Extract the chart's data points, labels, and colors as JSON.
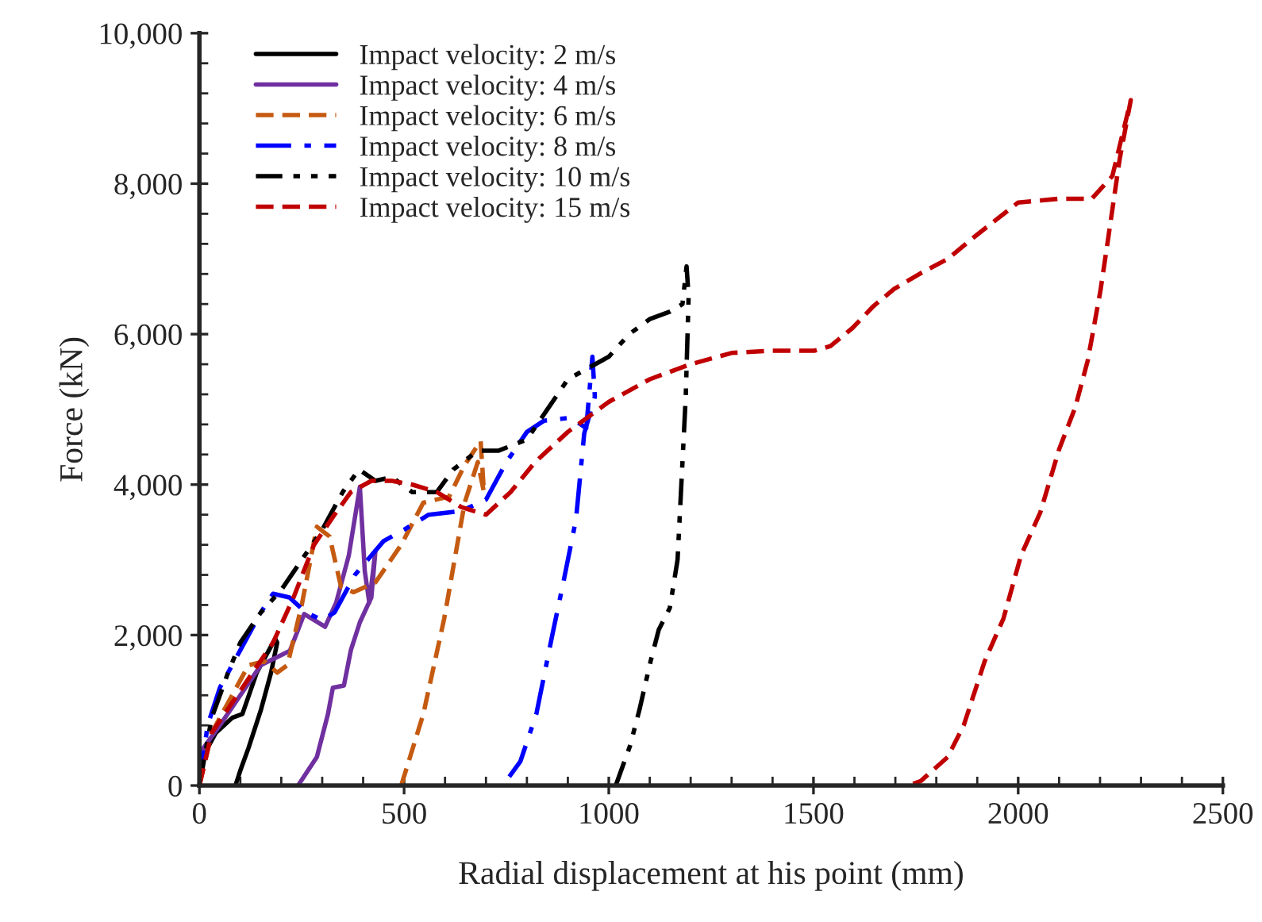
{
  "chart_data": {
    "type": "line",
    "xlabel": "Radial displacement at his point (mm)",
    "ylabel": "Force (kN)",
    "xlim": [
      0,
      2500
    ],
    "xticks": [
      0,
      500,
      1000,
      1500,
      2000,
      2500
    ],
    "ylim": [
      0,
      10000
    ],
    "yticks": [
      {
        "value": 0,
        "label": "0"
      },
      {
        "value": 2000,
        "label": "2,000"
      },
      {
        "value": 4000,
        "label": "4,000"
      },
      {
        "value": 6000,
        "label": "6,000"
      },
      {
        "value": 8000,
        "label": "8,000"
      },
      {
        "value": 10000,
        "label": "10,000"
      }
    ],
    "grid": false,
    "legend": "top left",
    "marker": "none",
    "series": [
      {
        "name": "Impact velocity: 2 m/s",
        "color": "#000000",
        "line_style": "solid",
        "x": [
          0,
          10,
          40,
          80,
          105,
          140,
          170,
          185,
          190,
          175,
          150,
          120,
          100,
          88
        ],
        "values": [
          0,
          400,
          700,
          900,
          950,
          1500,
          1800,
          1950,
          1900,
          1500,
          1000,
          500,
          200,
          0
        ]
      },
      {
        "name": "Impact velocity: 4 m/s",
        "color": "#7030a0",
        "line_style": "solid",
        "x": [
          0,
          10,
          50,
          100,
          150,
          221,
          256,
          307,
          334,
          365,
          392,
          404,
          415,
          430,
          420,
          392,
          370,
          353,
          326,
          314,
          287,
          241
        ],
        "values": [
          0,
          500,
          800,
          1200,
          1600,
          1790,
          2280,
          2110,
          2430,
          3060,
          3970,
          2850,
          2430,
          3120,
          2500,
          2170,
          1800,
          1330,
          1300,
          950,
          380,
          0
        ]
      },
      {
        "name": "Impact velocity: 6 m/s",
        "color": "#c55a11",
        "line_style": "dashed",
        "x": [
          0,
          30,
          80,
          120,
          160,
          190,
          215,
          250,
          287,
          318,
          346,
          377,
          430,
          493,
          547,
          610,
          648,
          687,
          695,
          680,
          648,
          598,
          547,
          493
        ],
        "values": [
          0,
          700,
          1200,
          1600,
          1650,
          1500,
          1600,
          2400,
          3440,
          3310,
          2640,
          2570,
          2700,
          3200,
          3760,
          3840,
          4260,
          4580,
          3900,
          4300,
          3760,
          2220,
          950,
          0
        ]
      },
      {
        "name": "Impact velocity: 8 m/s",
        "color": "#0000ff",
        "line_style": "dashdot",
        "x": [
          0,
          20,
          50,
          100,
          150,
          180,
          220,
          260,
          300,
          330,
          380,
          450,
          500,
          560,
          640,
          700,
          750,
          800,
          842,
          908,
          945,
          960,
          966,
          940,
          920,
          889,
          862,
          823,
          784,
          741
        ],
        "values": [
          0,
          800,
          1300,
          1800,
          2300,
          2550,
          2500,
          2300,
          2200,
          2300,
          2800,
          3250,
          3400,
          3600,
          3650,
          3800,
          4300,
          4700,
          4850,
          4890,
          4750,
          5700,
          5170,
          4680,
          3540,
          2700,
          2000,
          950,
          320,
          0
        ]
      },
      {
        "name": "Impact velocity: 10 m/s",
        "color": "#000000",
        "line_style": "dashdotdot",
        "x": [
          0,
          30,
          70,
          100,
          150,
          200,
          250,
          300,
          350,
          390,
          430,
          470,
          520,
          580,
          620,
          680,
          730,
          800,
          850,
          900,
          1000,
          1050,
          1100,
          1150,
          1180,
          1190,
          1195,
          1188,
          1168,
          1149,
          1122,
          1102,
          1075,
          1052,
          1017
        ],
        "values": [
          0,
          900,
          1500,
          1900,
          2300,
          2600,
          3000,
          3400,
          3900,
          4200,
          4050,
          4100,
          3900,
          3900,
          4200,
          4450,
          4450,
          4600,
          5000,
          5400,
          5700,
          6000,
          6200,
          6300,
          6400,
          6900,
          6500,
          5170,
          3000,
          2360,
          2070,
          1650,
          1010,
          530,
          0
        ]
      },
      {
        "name": "Impact velocity: 15 m/s",
        "color": "#c00000",
        "line_style": "dashed",
        "x": [
          0,
          30,
          80,
          130,
          180,
          230,
          280,
          330,
          370,
          420,
          470,
          520,
          580,
          640,
          700,
          760,
          820,
          900,
          1000,
          1100,
          1200,
          1300,
          1394,
          1502,
          1541,
          1595,
          1646,
          1697,
          1762,
          1828,
          1890,
          2000,
          2100,
          2180,
          2230,
          2275,
          2248,
          2220,
          2201,
          2170,
          2139,
          2100,
          2054,
          2007,
          1964,
          1918,
          1867,
          1828,
          1762,
          1731
        ],
        "values": [
          0,
          700,
          1100,
          1500,
          1900,
          2500,
          3200,
          3600,
          3900,
          4050,
          4050,
          4000,
          3900,
          3700,
          3600,
          3900,
          4300,
          4700,
          5100,
          5400,
          5600,
          5750,
          5780,
          5780,
          5840,
          6080,
          6370,
          6600,
          6810,
          7000,
          7280,
          7750,
          7800,
          7800,
          8100,
          9110,
          8330,
          7280,
          6580,
          5650,
          5020,
          4470,
          3630,
          3060,
          2220,
          1650,
          800,
          380,
          60,
          0
        ]
      }
    ]
  }
}
